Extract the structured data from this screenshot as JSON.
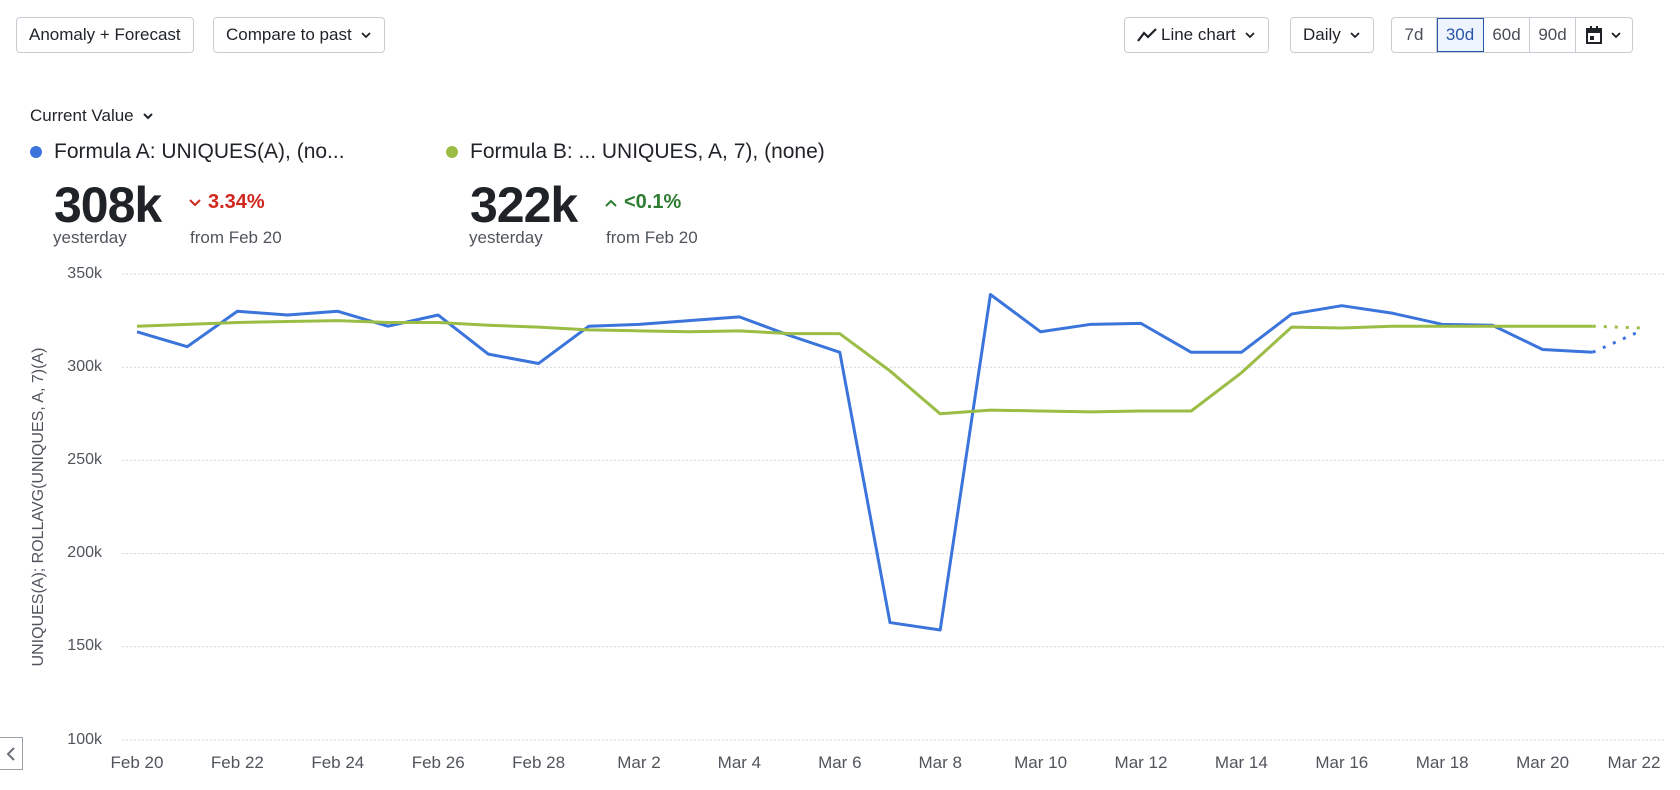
{
  "toolbar": {
    "anomaly_forecast_label": "Anomaly + Forecast",
    "compare_label": "Compare to past",
    "chart_type_label": "Line chart",
    "interval_label": "Daily",
    "ranges": [
      "7d",
      "30d",
      "60d",
      "90d"
    ],
    "active_range": "30d",
    "calendar_icon": "calendar-icon"
  },
  "summary": {
    "mode_label": "Current Value",
    "series": [
      {
        "name": "Formula A: UNIQUES(A), (no...",
        "color": "#3b74db",
        "value": "308k",
        "value_caption": "yesterday",
        "delta": "3.34%",
        "delta_direction": "down",
        "delta_color": "#d0281e",
        "delta_caption": "from Feb 20"
      },
      {
        "name": "Formula B:  ...  UNIQUES, A, 7), (none)",
        "color": "#9bbd45",
        "value": "322k",
        "value_caption": "yesterday",
        "delta": "<0.1%",
        "delta_direction": "up",
        "delta_color": "#2e7d32",
        "delta_caption": "from Feb 20"
      }
    ]
  },
  "chart_data": {
    "type": "line",
    "title": "",
    "xlabel": "",
    "ylabel": "UNIQUES(A); ROLLAVG(UNIQUES, A, 7)(A)",
    "ylim": [
      100000,
      350000
    ],
    "yticks": [
      "350k",
      "300k",
      "250k",
      "200k",
      "150k",
      "100k"
    ],
    "ytick_values": [
      350000,
      300000,
      250000,
      200000,
      150000,
      100000
    ],
    "grid": true,
    "legend_position": "top",
    "xtick_labels": [
      "Feb 20",
      "Feb 22",
      "Feb 24",
      "Feb 26",
      "Feb 28",
      "Mar 2",
      "Mar 4",
      "Mar 6",
      "Mar 8",
      "Mar 10",
      "Mar 12",
      "Mar 14",
      "Mar 16",
      "Mar 18",
      "Mar 20",
      "Mar 22"
    ],
    "x": [
      "Feb 20",
      "Feb 21",
      "Feb 22",
      "Feb 23",
      "Feb 24",
      "Feb 25",
      "Feb 26",
      "Feb 27",
      "Feb 28",
      "Mar 1",
      "Mar 2",
      "Mar 3",
      "Mar 4",
      "Mar 5",
      "Mar 6",
      "Mar 7",
      "Mar 8",
      "Mar 9",
      "Mar 10",
      "Mar 11",
      "Mar 12",
      "Mar 13",
      "Mar 14",
      "Mar 15",
      "Mar 16",
      "Mar 17",
      "Mar 18",
      "Mar 19",
      "Mar 20",
      "Mar 21",
      "Mar 22"
    ],
    "series": [
      {
        "name": "Formula A: UNIQUES(A)",
        "color": "#3b74db",
        "values": [
          319000,
          311000,
          330000,
          328000,
          330000,
          322000,
          328000,
          307000,
          302000,
          322000,
          323000,
          325000,
          327000,
          317000,
          308000,
          163000,
          159000,
          339000,
          319000,
          323000,
          323500,
          308000,
          308000,
          328500,
          333000,
          329000,
          323000,
          322500,
          309500,
          308000
        ],
        "forecast": [
          308000,
          320000
        ]
      },
      {
        "name": "Formula B: ROLLAVG(UNIQUES, A, 7)",
        "color": "#9bbd45",
        "values": [
          322000,
          323000,
          324000,
          324500,
          325000,
          324000,
          324000,
          322500,
          321500,
          320000,
          319500,
          319000,
          319500,
          318000,
          318000,
          298000,
          275000,
          277000,
          276500,
          276000,
          276500,
          276500,
          297000,
          321500,
          321000,
          322000,
          322000,
          322000,
          322000,
          322000
        ],
        "forecast": [
          322000,
          321000
        ]
      }
    ]
  }
}
